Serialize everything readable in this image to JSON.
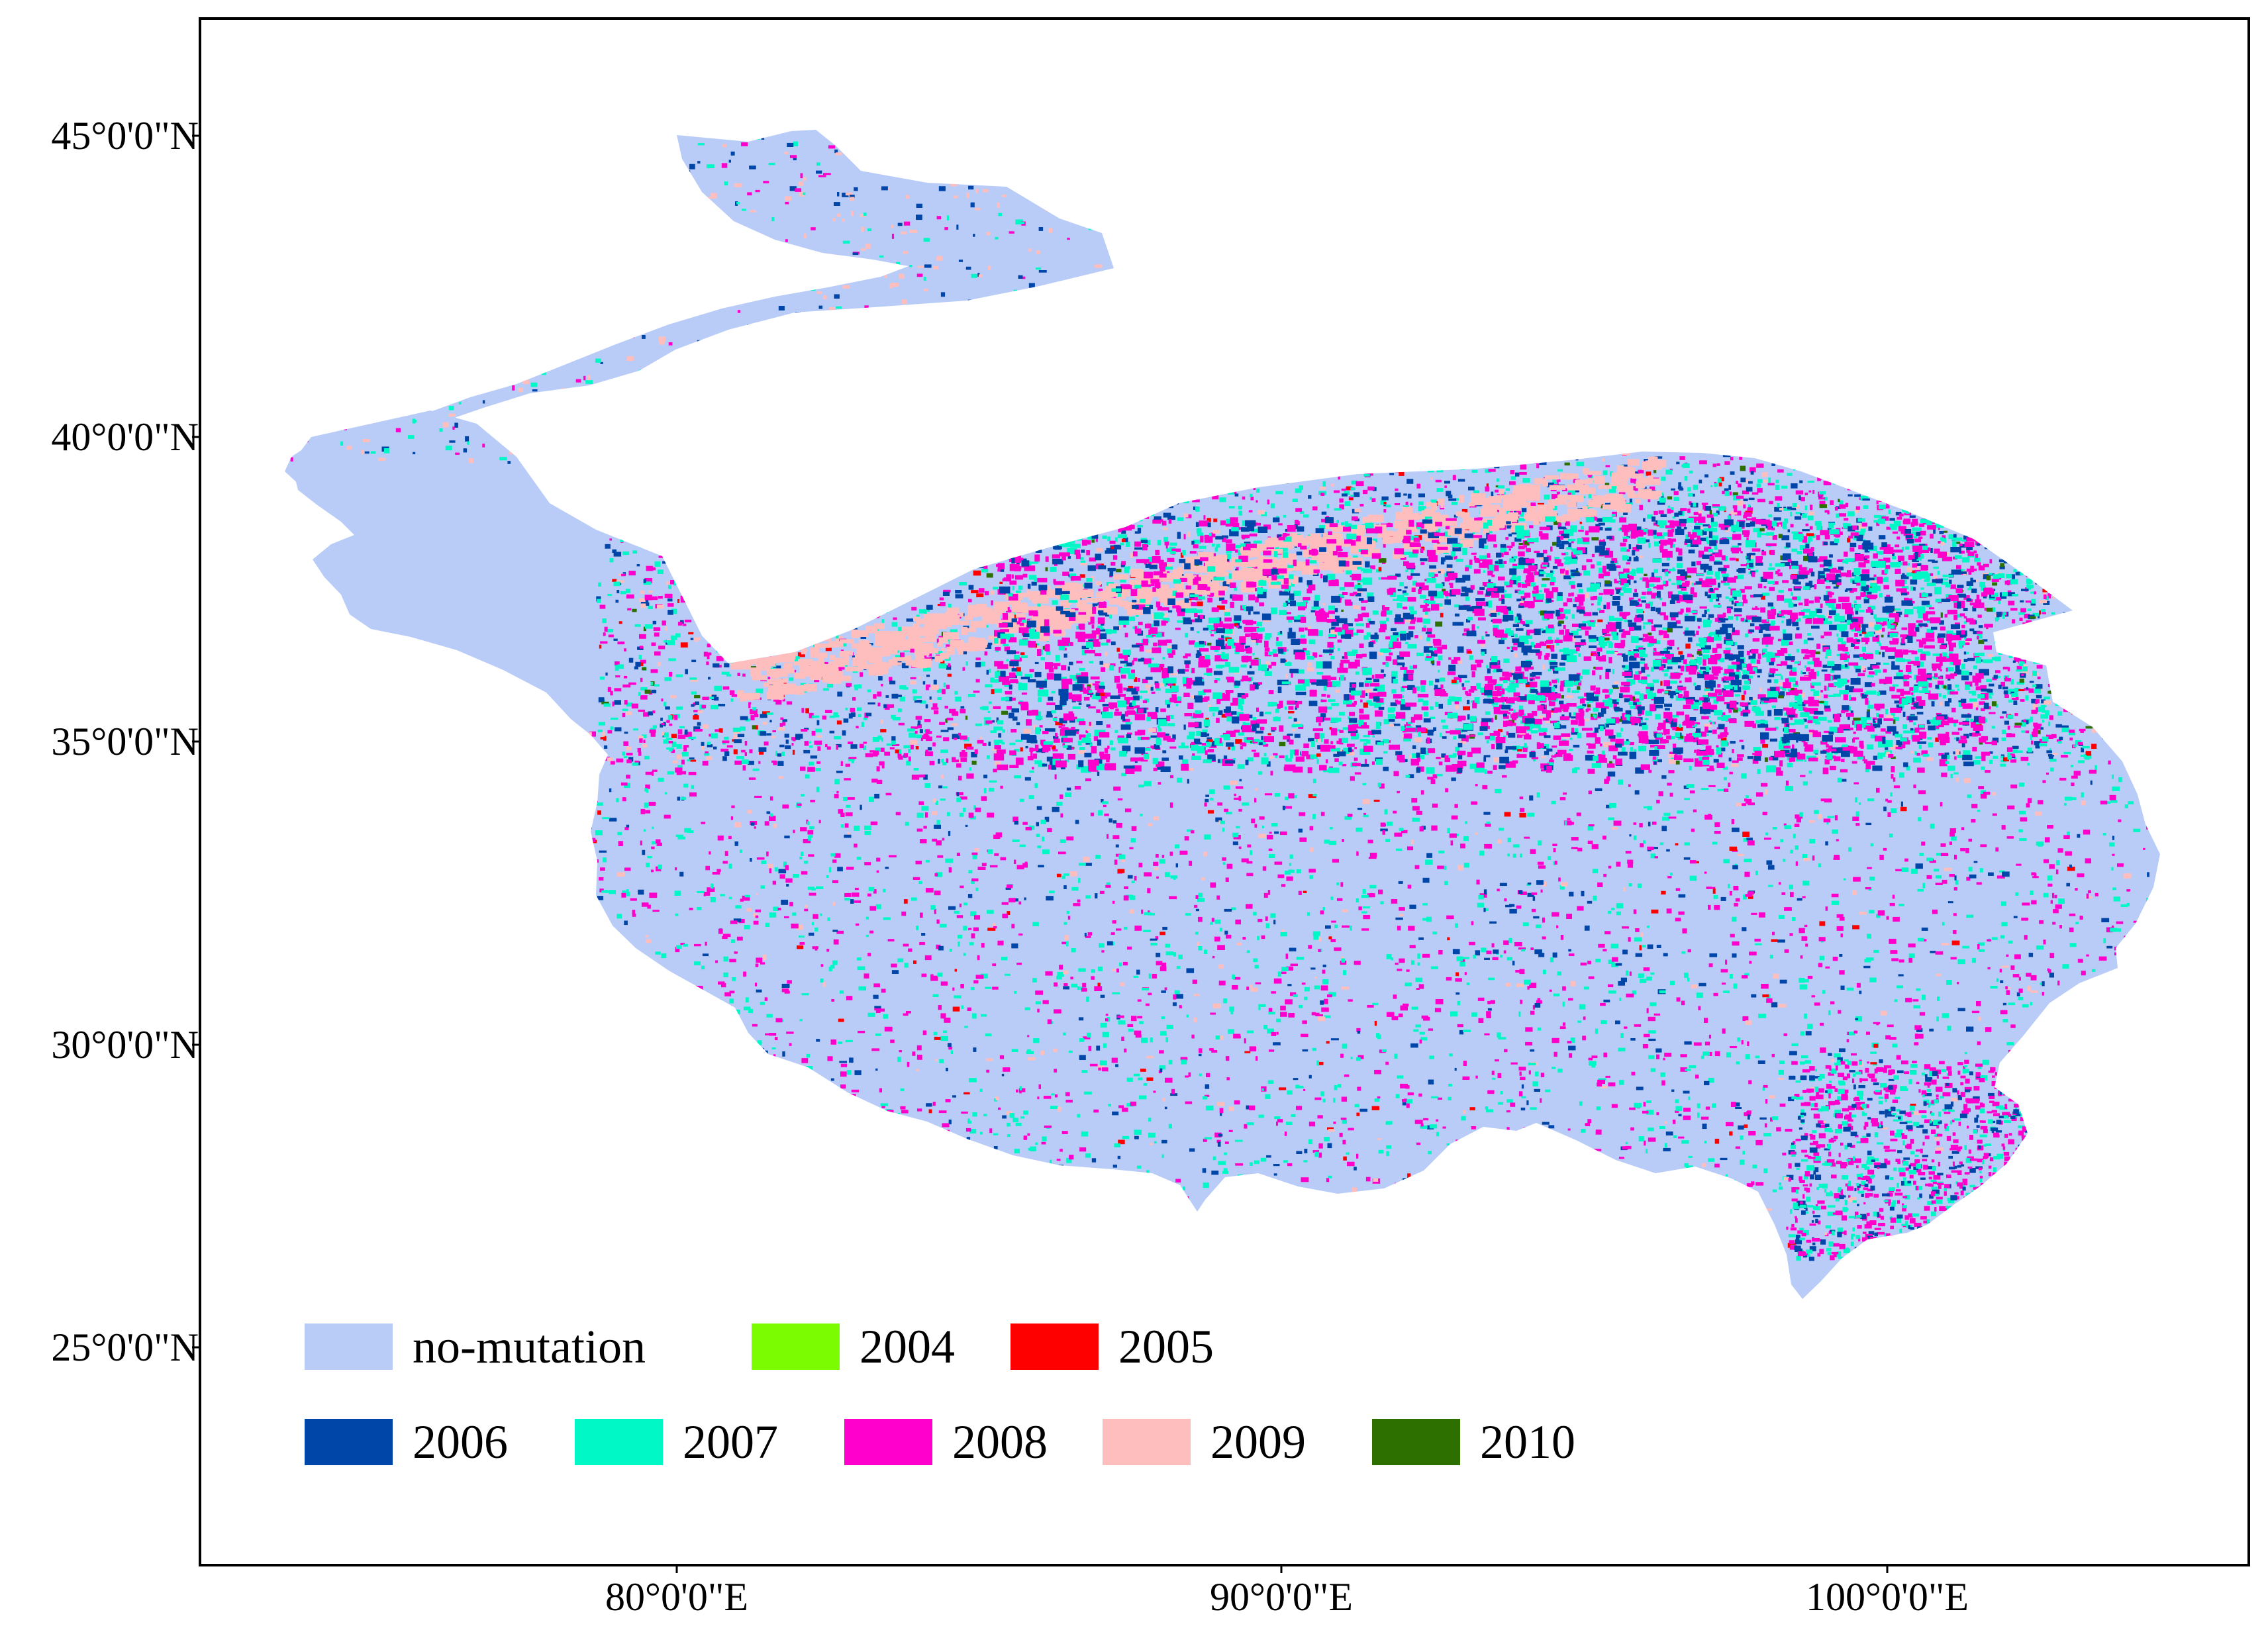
{
  "latitude_labels": [
    "45°0'0\"N",
    "40°0'0\"N",
    "35°0'0\"N",
    "30°0'0\"N",
    "25°0'0\"N"
  ],
  "longitude_labels": [
    "80°0'0\"E",
    "90°0'0\"E",
    "100°0'0\"E"
  ],
  "colors": {
    "no_mutation": "#B9CCF7",
    "y2004": "#7CFC00",
    "y2005": "#FF0000",
    "y2006": "#0046A8",
    "y2007": "#00F7C6",
    "y2008": "#FF00CC",
    "y2009": "#FFBEBE",
    "y2010": "#2E7000"
  },
  "legend": [
    {
      "label": "no-mutation",
      "color": "#B9CCF7"
    },
    {
      "label": "2004",
      "color": "#7CFC00"
    },
    {
      "label": "2005",
      "color": "#FF0000"
    },
    {
      "label": "2006",
      "color": "#0046A8"
    },
    {
      "label": "2007",
      "color": "#00F7C6"
    },
    {
      "label": "2008",
      "color": "#FF00CC"
    },
    {
      "label": "2009",
      "color": "#FFBEBE"
    },
    {
      "label": "2010",
      "color": "#2E7000"
    }
  ]
}
